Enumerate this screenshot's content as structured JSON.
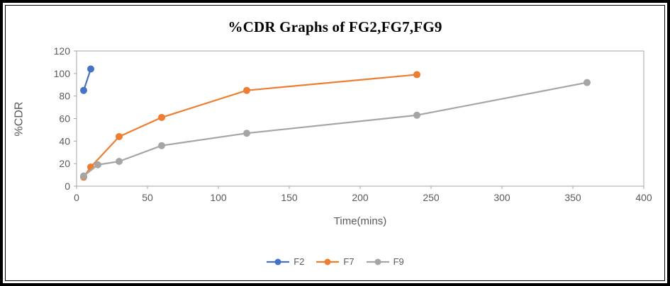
{
  "chart_data": {
    "type": "line",
    "title": "%CDR Graphs of FG2,FG7,FG9",
    "xlabel": "Time(mins)",
    "ylabel": "%CDR",
    "xlim": [
      0,
      400
    ],
    "ylim": [
      0,
      120
    ],
    "x_ticks": [
      0,
      50,
      100,
      150,
      200,
      250,
      300,
      350,
      400
    ],
    "y_ticks": [
      0,
      20,
      40,
      60,
      80,
      100,
      120
    ],
    "grid": false,
    "legend_position": "bottom",
    "series": [
      {
        "name": "F2",
        "color": "#4472C4",
        "points": [
          [
            5,
            85
          ],
          [
            10,
            104
          ]
        ]
      },
      {
        "name": "F7",
        "color": "#ED7D31",
        "points": [
          [
            5,
            8
          ],
          [
            10,
            17
          ],
          [
            30,
            44
          ],
          [
            60,
            61
          ],
          [
            120,
            85
          ],
          [
            240,
            99
          ]
        ]
      },
      {
        "name": "F9",
        "color": "#A5A5A5",
        "points": [
          [
            5,
            9
          ],
          [
            15,
            19
          ],
          [
            30,
            22
          ],
          [
            60,
            36
          ],
          [
            120,
            47
          ],
          [
            240,
            63
          ],
          [
            360,
            92
          ]
        ]
      }
    ],
    "frame_color": "#000000",
    "axis_color": "#A6A6A6",
    "text_color": "#595959"
  }
}
